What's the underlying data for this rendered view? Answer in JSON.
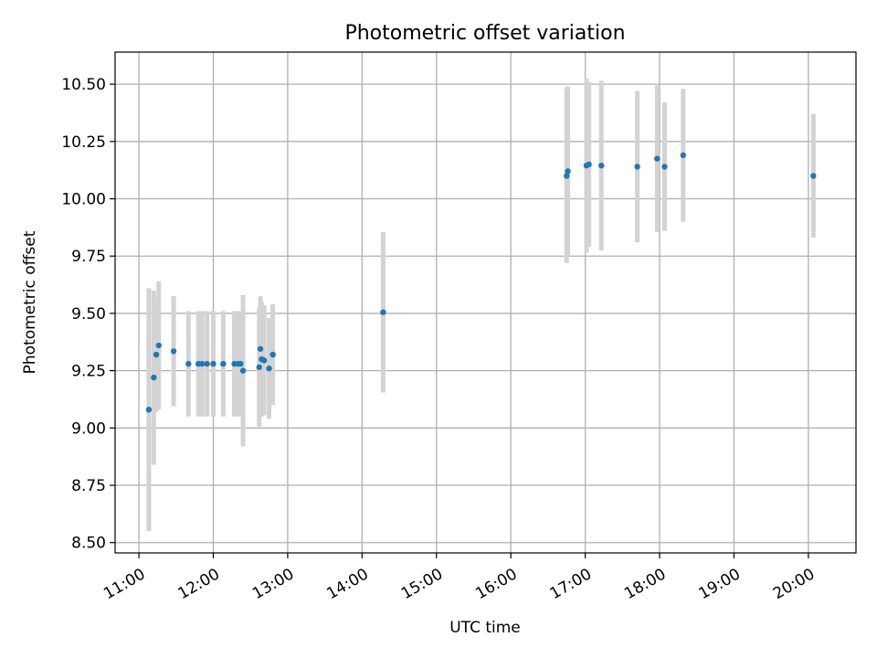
{
  "chart_data": {
    "type": "scatter",
    "title": "Photometric offset variation",
    "xlabel": "UTC time",
    "ylabel": "Photometric offset",
    "x_format": "time HH:MM (hours)",
    "xlim": [
      10.68,
      20.64
    ],
    "ylim": [
      8.455,
      10.64
    ],
    "x_ticks": [
      11,
      12,
      13,
      14,
      15,
      16,
      17,
      18,
      19,
      20
    ],
    "x_tick_labels": [
      "11:00",
      "12:00",
      "13:00",
      "14:00",
      "15:00",
      "16:00",
      "17:00",
      "18:00",
      "19:00",
      "20:00"
    ],
    "y_ticks": [
      8.5,
      8.75,
      9.0,
      9.25,
      9.5,
      9.75,
      10.0,
      10.25,
      10.5
    ],
    "y_tick_labels": [
      "8.50",
      "8.75",
      "9.00",
      "9.25",
      "9.50",
      "9.75",
      "10.00",
      "10.25",
      "10.50"
    ],
    "grid": true,
    "colors": {
      "points": "#1f77b4",
      "errorbars": "#d3d3d3",
      "grid": "#b0b0b0",
      "axes": "#000000"
    },
    "series": [
      {
        "points": [
          {
            "x": "11:08",
            "y": 9.08,
            "err": 0.53
          },
          {
            "x": "11:12",
            "y": 9.22,
            "err": 0.38
          },
          {
            "x": "11:14",
            "y": 9.32,
            "err": 0.25
          },
          {
            "x": "11:16",
            "y": 9.36,
            "err": 0.28
          },
          {
            "x": "11:28",
            "y": 9.335,
            "err": 0.24
          },
          {
            "x": "11:40",
            "y": 9.28,
            "err": 0.23
          },
          {
            "x": "11:48",
            "y": 9.28,
            "err": 0.23
          },
          {
            "x": "11:51",
            "y": 9.28,
            "err": 0.23
          },
          {
            "x": "11:55",
            "y": 9.28,
            "err": 0.23
          },
          {
            "x": "12:00",
            "y": 9.28,
            "err": 0.23
          },
          {
            "x": "12:08",
            "y": 9.28,
            "err": 0.23
          },
          {
            "x": "12:17",
            "y": 9.28,
            "err": 0.23
          },
          {
            "x": "12:20",
            "y": 9.28,
            "err": 0.23
          },
          {
            "x": "12:22",
            "y": 9.28,
            "err": 0.23
          },
          {
            "x": "12:24",
            "y": 9.25,
            "err": 0.33
          },
          {
            "x": "12:37",
            "y": 9.265,
            "err": 0.26
          },
          {
            "x": "12:38",
            "y": 9.345,
            "err": 0.23
          },
          {
            "x": "12:39",
            "y": 9.3,
            "err": 0.25
          },
          {
            "x": "12:41",
            "y": 9.295,
            "err": 0.24
          },
          {
            "x": "12:45",
            "y": 9.26,
            "err": 0.22
          },
          {
            "x": "12:48",
            "y": 9.32,
            "err": 0.22
          },
          {
            "x": "14:17",
            "y": 9.505,
            "err": 0.35
          },
          {
            "x": "16:45",
            "y": 10.1,
            "err": 0.38
          },
          {
            "x": "16:46",
            "y": 10.12,
            "err": 0.37
          },
          {
            "x": "17:01",
            "y": 10.145,
            "err": 0.38
          },
          {
            "x": "17:03",
            "y": 10.15,
            "err": 0.36
          },
          {
            "x": "17:13",
            "y": 10.145,
            "err": 0.37
          },
          {
            "x": "17:42",
            "y": 10.14,
            "err": 0.33
          },
          {
            "x": "17:58",
            "y": 10.175,
            "err": 0.32
          },
          {
            "x": "18:04",
            "y": 10.14,
            "err": 0.28
          },
          {
            "x": "18:19",
            "y": 10.19,
            "err": 0.29
          },
          {
            "x": "20:04",
            "y": 10.1,
            "err": 0.27
          }
        ]
      }
    ]
  }
}
